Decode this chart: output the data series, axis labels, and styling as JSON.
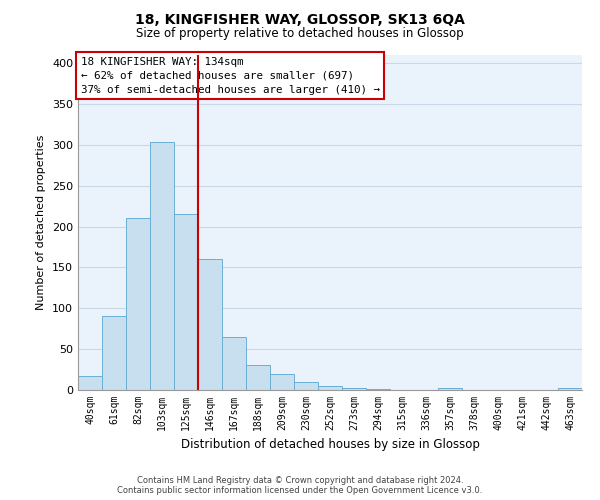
{
  "title": "18, KINGFISHER WAY, GLOSSOP, SK13 6QA",
  "subtitle": "Size of property relative to detached houses in Glossop",
  "xlabel": "Distribution of detached houses by size in Glossop",
  "ylabel": "Number of detached properties",
  "bar_labels": [
    "40sqm",
    "61sqm",
    "82sqm",
    "103sqm",
    "125sqm",
    "146sqm",
    "167sqm",
    "188sqm",
    "209sqm",
    "230sqm",
    "252sqm",
    "273sqm",
    "294sqm",
    "315sqm",
    "336sqm",
    "357sqm",
    "378sqm",
    "400sqm",
    "421sqm",
    "442sqm",
    "463sqm"
  ],
  "bar_values": [
    17,
    90,
    211,
    303,
    215,
    160,
    65,
    31,
    20,
    10,
    5,
    2,
    1,
    0,
    0,
    2,
    0,
    0,
    0,
    0,
    2
  ],
  "bar_color": "#c8dff0",
  "bar_edge_color": "#6aaed6",
  "vline_x": 4.5,
  "vline_color": "#cc0000",
  "ylim": [
    0,
    410
  ],
  "yticks": [
    0,
    50,
    100,
    150,
    200,
    250,
    300,
    350,
    400
  ],
  "annotation_title": "18 KINGFISHER WAY: 134sqm",
  "annotation_line1": "← 62% of detached houses are smaller (697)",
  "annotation_line2": "37% of semi-detached houses are larger (410) →",
  "footer1": "Contains HM Land Registry data © Crown copyright and database right 2024.",
  "footer2": "Contains public sector information licensed under the Open Government Licence v3.0.",
  "background_color": "#ffffff",
  "plot_bg_color": "#eaf2fb",
  "grid_color": "#c8d8e8"
}
